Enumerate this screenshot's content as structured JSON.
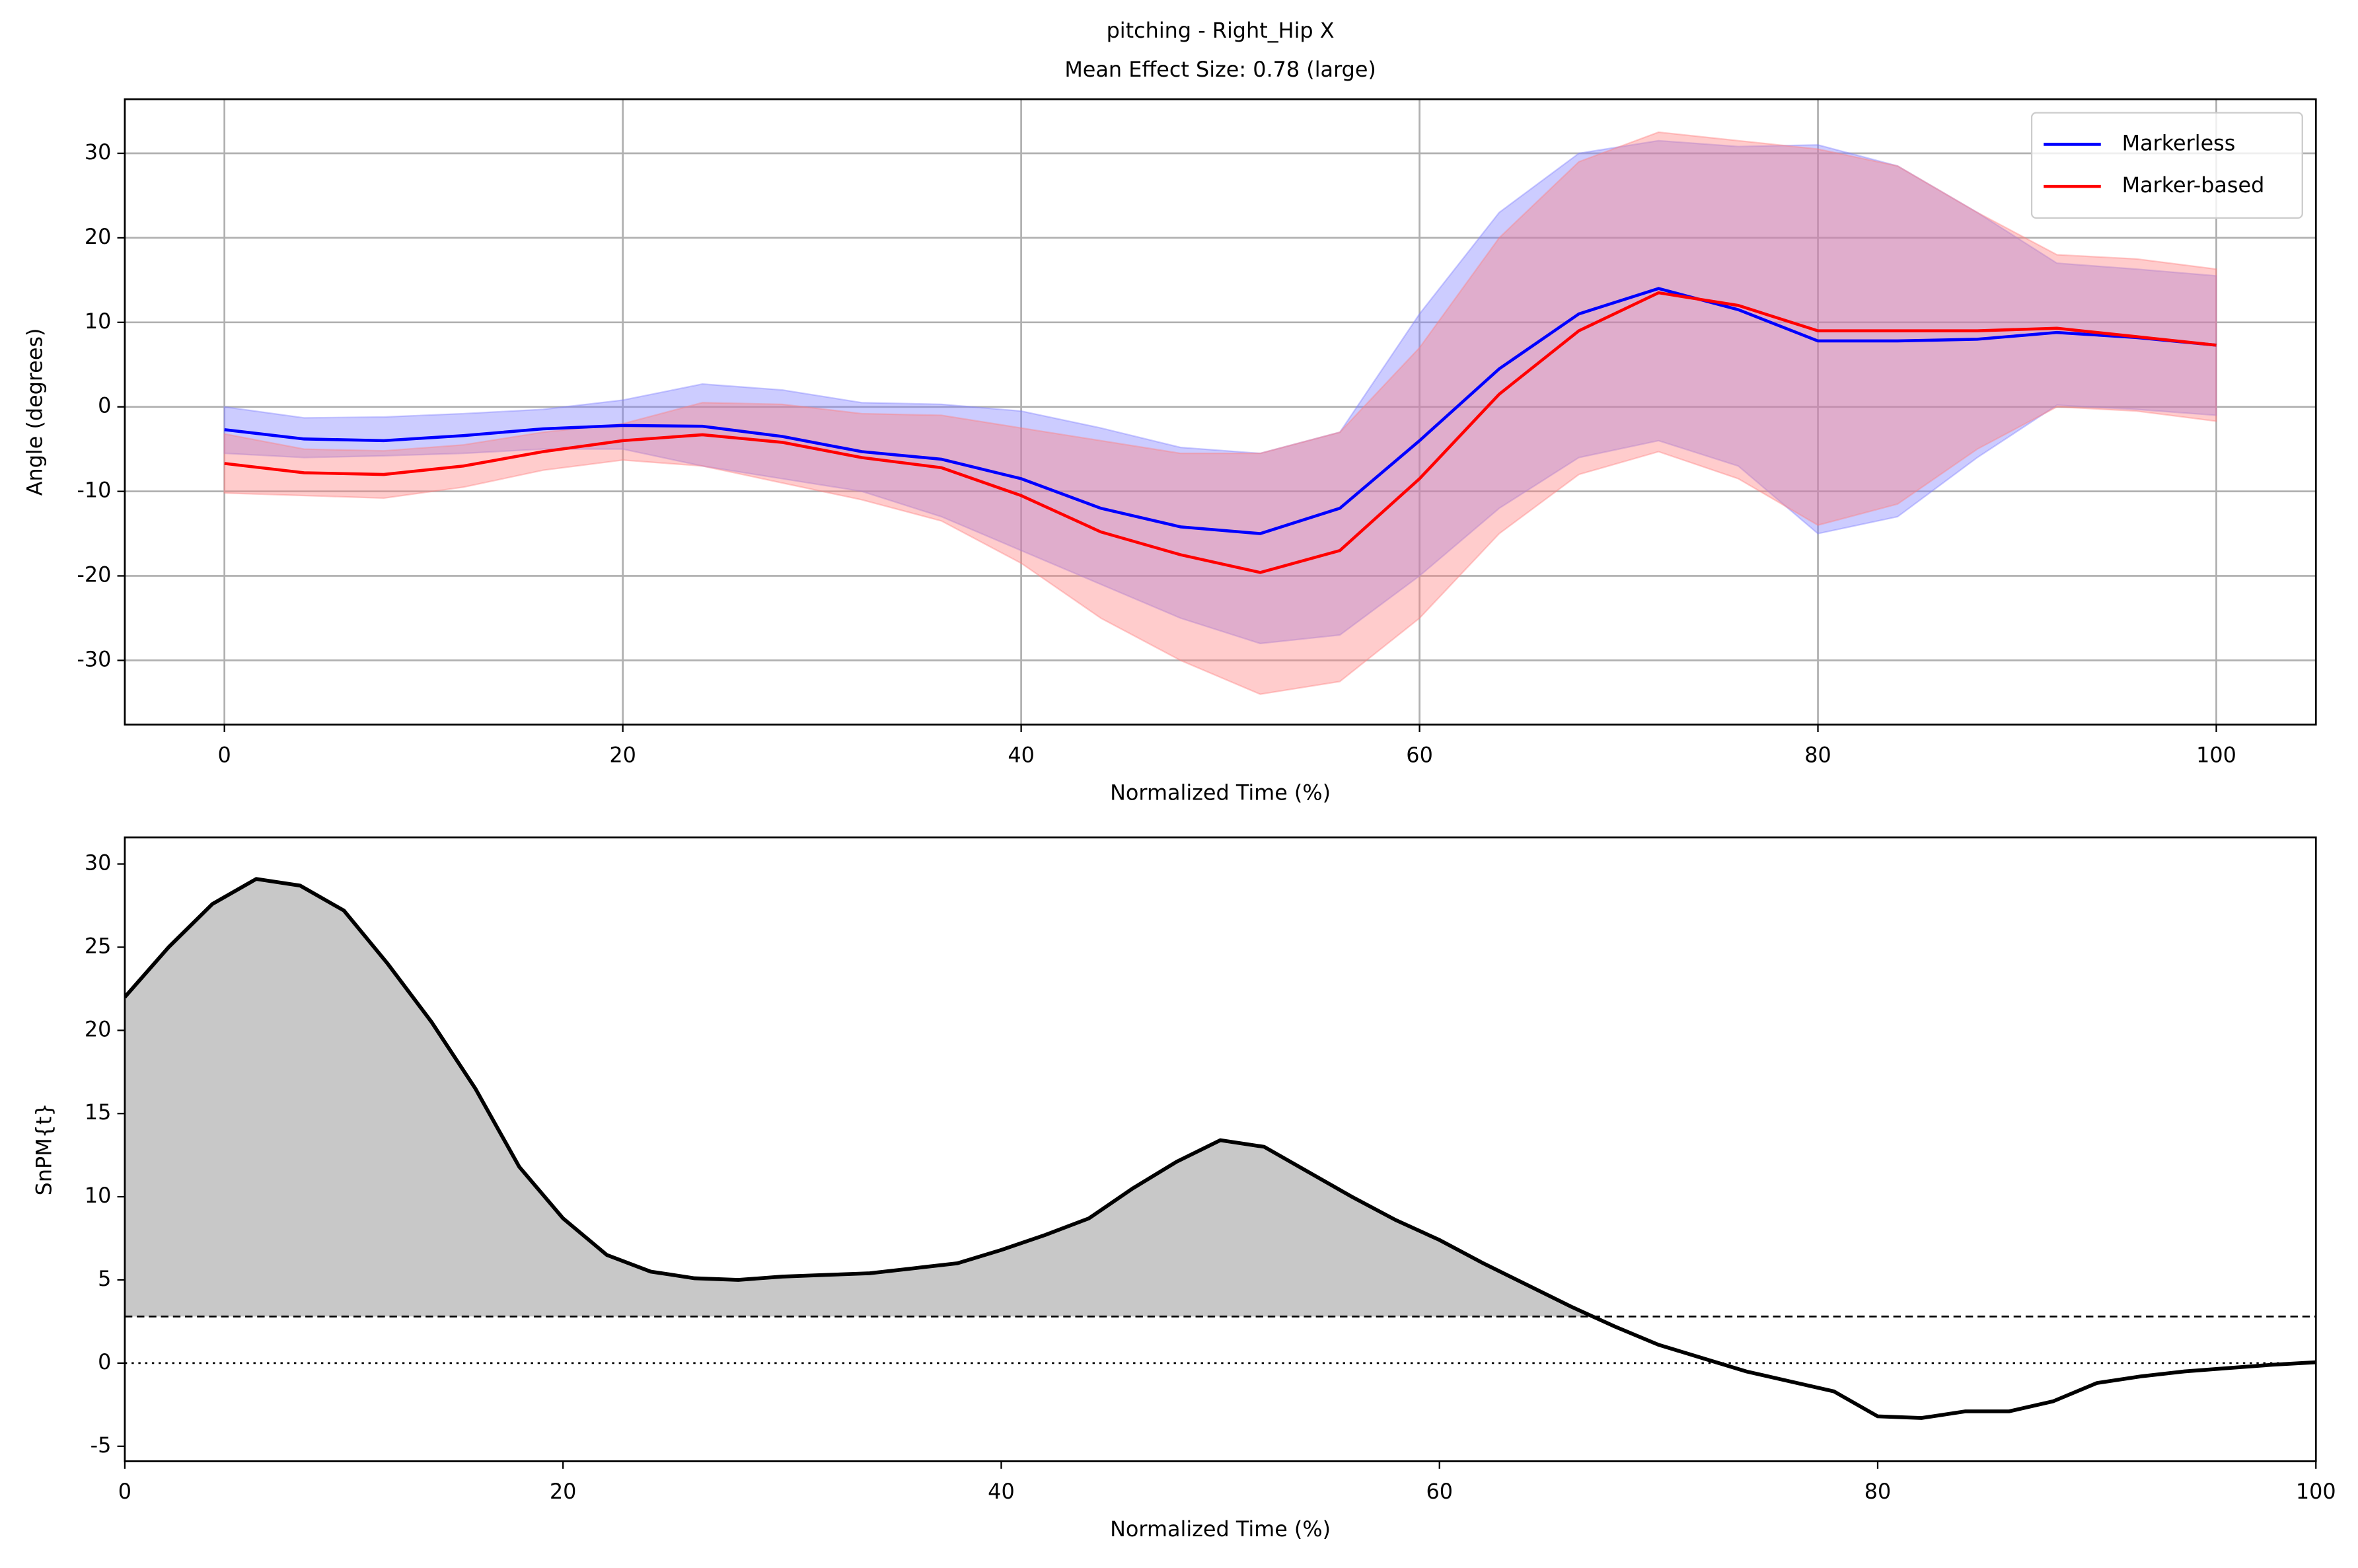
{
  "chart_data": [
    {
      "type": "line",
      "title": "pitching - Right_Hip X",
      "subtitle": "Mean Effect Size: 0.78 (large)",
      "x_label": "Normalized Time (%)",
      "y_label": "Angle (degrees)",
      "x": [
        0,
        4,
        8,
        12,
        16,
        20,
        24,
        28,
        32,
        36,
        40,
        44,
        48,
        52,
        56,
        60,
        64,
        68,
        72,
        76,
        80,
        84,
        88,
        92,
        96,
        100
      ],
      "series": [
        {
          "name": "Markerless",
          "color": "#0000ff",
          "band_color": "#8080ff",
          "values": [
            -2.7,
            -3.8,
            -4,
            -3.4,
            -2.6,
            -2.2,
            -2.3,
            -3.5,
            -5.3,
            -6.2,
            -8.5,
            -12,
            -14.2,
            -15,
            -12,
            -4,
            4.5,
            11,
            14,
            11.5,
            7.8,
            7.8,
            8,
            8.8,
            8.2,
            7.3
          ],
          "upper": [
            0,
            -1.3,
            -1.2,
            -0.8,
            -0.3,
            0.8,
            2.7,
            2,
            0.5,
            0.3,
            -0.5,
            -2.5,
            -4.8,
            -5.5,
            -3,
            11,
            23,
            30,
            31.5,
            30.8,
            31,
            28.5,
            23,
            17,
            16.3,
            15.5
          ],
          "lower": [
            -5.5,
            -6,
            -5.8,
            -5.5,
            -5,
            -5,
            -7,
            -8.5,
            -10,
            -13,
            -17,
            -21,
            -25,
            -28,
            -27,
            -20,
            -12,
            -6,
            -4,
            -7,
            -15,
            -13,
            -6,
            0.2,
            -0.3,
            -1
          ]
        },
        {
          "name": "Marker-based",
          "color": "#ff0000",
          "band_color": "#ff8080",
          "values": [
            -6.7,
            -7.8,
            -8,
            -7,
            -5.3,
            -4,
            -3.3,
            -4.2,
            -6,
            -7.2,
            -10.5,
            -14.8,
            -17.5,
            -19.6,
            -17,
            -8.5,
            1.5,
            9,
            13.5,
            12,
            9,
            9,
            9,
            9.3,
            8.3,
            7.3
          ],
          "upper": [
            -3.2,
            -5,
            -5.2,
            -4.5,
            -3,
            -2,
            0.5,
            0.3,
            -0.8,
            -1,
            -2.5,
            -4,
            -5.5,
            -5.5,
            -3,
            7,
            20,
            29,
            32.5,
            31.5,
            30.5,
            28.5,
            23,
            18,
            17.5,
            16.3
          ],
          "lower": [
            -10.2,
            -10.5,
            -10.8,
            -9.5,
            -7.5,
            -6.3,
            -7,
            -9,
            -11,
            -13.5,
            -18.5,
            -25,
            -30,
            -34,
            -32.5,
            -25,
            -15,
            -8,
            -5.3,
            -8.5,
            -14,
            -11.5,
            -5,
            0,
            -0.5,
            -1.7
          ]
        }
      ],
      "xlim": [
        -5,
        105
      ],
      "ylim": [
        -37.6,
        36.4
      ],
      "xticks": [
        0,
        20,
        40,
        60,
        80,
        100
      ],
      "yticks": [
        -30,
        -20,
        -10,
        0,
        10,
        20,
        30
      ],
      "grid": true,
      "legend": "upper right"
    },
    {
      "type": "line",
      "x_label": "Normalized Time (%)",
      "y_label": "SnPM{t}",
      "x": [
        0,
        2,
        4,
        6,
        8,
        10,
        12,
        14,
        16,
        18,
        20,
        22,
        24,
        26,
        28,
        30,
        32,
        34,
        36,
        38,
        40,
        42,
        44,
        46,
        48,
        50,
        52,
        54,
        56,
        58,
        60,
        62,
        64,
        66,
        68,
        70,
        72,
        74,
        76,
        78,
        80,
        82,
        84,
        86,
        88,
        90,
        92,
        94,
        96,
        98,
        100
      ],
      "series": [
        {
          "color": "#000000",
          "values": [
            22,
            25,
            27.6,
            29.1,
            28.7,
            27.2,
            24,
            20.5,
            16.5,
            11.8,
            8.7,
            6.5,
            5.5,
            5.1,
            5.0,
            5.2,
            5.3,
            5.4,
            5.7,
            6.0,
            6.8,
            7.7,
            8.7,
            10.5,
            12.1,
            13.4,
            13.0,
            11.5,
            10.0,
            8.6,
            7.4,
            6.0,
            4.7,
            3.4,
            2.2,
            1.1,
            0.3,
            -0.5,
            -1.1,
            -1.7,
            -3.2,
            -3.3,
            -2.9,
            -2.9,
            -2.3,
            -1.2,
            -0.8,
            -0.5,
            -0.3,
            -0.1,
            0.05
          ]
        }
      ],
      "threshold": 2.8,
      "fill_color": "#c8c8c8",
      "xlim": [
        0,
        100
      ],
      "ylim": [
        -5.9,
        31.6
      ],
      "xticks": [
        0,
        20,
        40,
        60,
        80,
        100
      ],
      "yticks": [
        -5,
        0,
        5,
        10,
        15,
        20,
        25,
        30
      ],
      "grid": false
    }
  ]
}
